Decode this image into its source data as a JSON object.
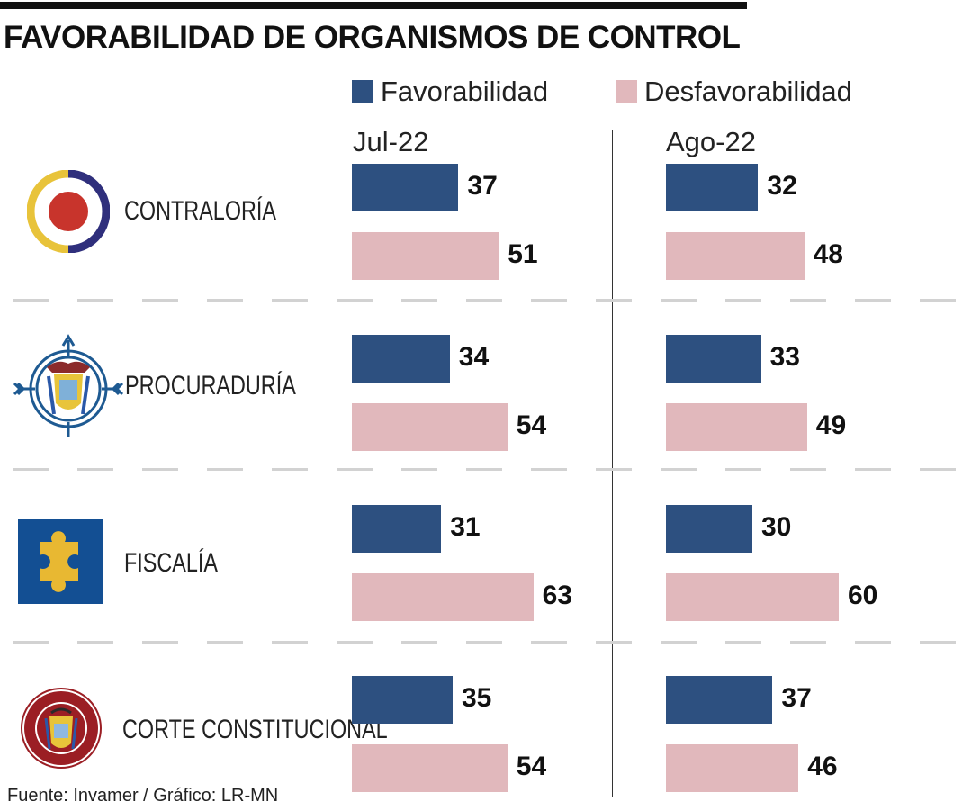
{
  "title": "FAVORABILIDAD DE ORGANISMOS DE CONTROL",
  "source": "Fuente: Invamer / Gráfico: LR-MN",
  "colors": {
    "favorable": "#2d5080",
    "unfavorable": "#e1b8bc"
  },
  "legend": [
    {
      "label": "Favorabilidad",
      "color": "#2d5080"
    },
    {
      "label": "Desfavorabilidad",
      "color": "#e1b8bc"
    }
  ],
  "chart_data": {
    "type": "bar",
    "orientation": "horizontal",
    "title": "FAVORABILIDAD DE ORGANISMOS DE CONTROL",
    "panels": [
      "Jul-22",
      "Ago-22"
    ],
    "categories": [
      "CONTRALORÍA",
      "PROCURADURÍA",
      "FISCALÍA",
      "CORTE CONSTITUCIONAL"
    ],
    "category_icons": [
      "contraloria-logo-icon",
      "procuraduria-logo-icon",
      "fiscalia-logo-icon",
      "corte-constitucional-logo-icon"
    ],
    "series": [
      {
        "name": "Favorabilidad",
        "panel": "Jul-22",
        "values": [
          37,
          34,
          31,
          35
        ]
      },
      {
        "name": "Desfavorabilidad",
        "panel": "Jul-22",
        "values": [
          51,
          54,
          63,
          54
        ]
      },
      {
        "name": "Favorabilidad",
        "panel": "Ago-22",
        "values": [
          32,
          33,
          30,
          37
        ]
      },
      {
        "name": "Desfavorabilidad",
        "panel": "Ago-22",
        "values": [
          48,
          49,
          60,
          46
        ]
      }
    ],
    "unit": "%",
    "xlim": [
      0,
      100
    ],
    "legend_position": "top",
    "grid": false
  }
}
